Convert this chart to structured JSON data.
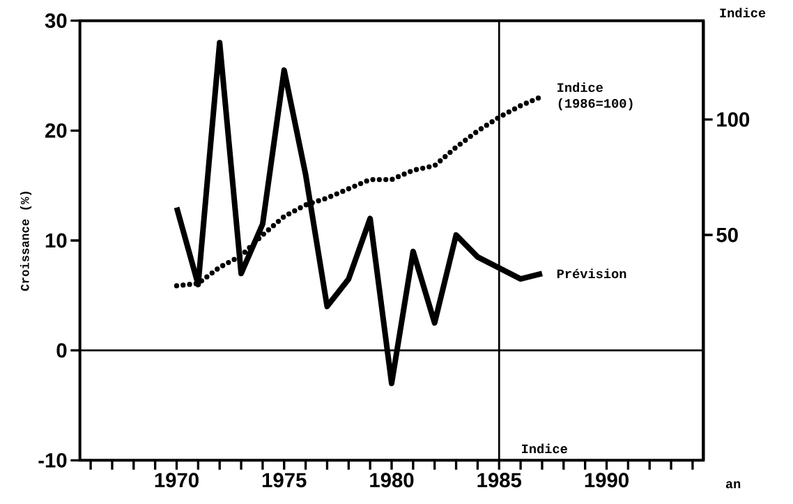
{
  "chart_data": {
    "type": "line",
    "ylabel": "Croissance (%)",
    "y2label": "Indice",
    "xlabel": "an",
    "x": [
      1970,
      1971,
      1972,
      1973,
      1974,
      1975,
      1976,
      1977,
      1978,
      1979,
      1980,
      1981,
      1982,
      1983,
      1984,
      1985,
      1986,
      1987
    ],
    "series": [
      {
        "name": "Prévision",
        "color": "#000000",
        "line_style": "solid",
        "values": [
          13,
          6,
          28,
          7,
          11.5,
          25.5,
          16,
          4,
          6.5,
          12,
          -3,
          9,
          2.5,
          10.5,
          8.5,
          7.5,
          6.5,
          7
        ]
      },
      {
        "name": "Indice (1986=100)",
        "color": "#000000",
        "line_style": "dotted",
        "axis": "y2",
        "values": [
          28,
          29,
          36,
          41,
          50,
          58,
          63,
          66,
          70,
          74,
          74,
          78,
          80,
          88,
          95,
          101,
          106,
          110
        ]
      }
    ],
    "xlim": [
      1965.5,
      1994.5
    ],
    "xticks": [
      {
        "value": 1966,
        "label": null
      },
      {
        "value": 1967,
        "label": null
      },
      {
        "value": 1968,
        "label": null
      },
      {
        "value": 1969,
        "label": null
      },
      1970,
      {
        "value": 1971,
        "label": null
      },
      {
        "value": 1972,
        "label": null
      },
      {
        "value": 1973,
        "label": null
      },
      {
        "value": 1974,
        "label": null
      },
      1975,
      {
        "value": 1976,
        "label": null
      },
      {
        "value": 1977,
        "label": null
      },
      {
        "value": 1978,
        "label": null
      },
      {
        "value": 1979,
        "label": null
      },
      1980,
      {
        "value": 1981,
        "label": null
      },
      {
        "value": 1982,
        "label": null
      },
      {
        "value": 1983,
        "label": null
      },
      {
        "value": 1984,
        "label": null
      },
      1985,
      {
        "value": 1986,
        "label": null
      },
      {
        "value": 1987,
        "label": null
      },
      {
        "value": 1988,
        "label": null
      },
      {
        "value": 1989,
        "label": null
      },
      1990,
      {
        "value": 1991,
        "label": null
      },
      {
        "value": 1992,
        "label": null
      },
      {
        "value": 1993,
        "label": null
      },
      {
        "value": 1994,
        "label": null
      }
    ],
    "ylim": [
      -10,
      30
    ],
    "yticks": [
      -10,
      0,
      10,
      20,
      30
    ],
    "y2lim": [
      -47.6,
      142.8
    ],
    "y2ticks": [
      50,
      100
    ],
    "ref_lines": [
      {
        "axis": "y",
        "value": 0
      },
      {
        "axis": "x",
        "value": 1985,
        "label": "Indice"
      }
    ],
    "marker": "none",
    "grid": false,
    "legend": false
  }
}
